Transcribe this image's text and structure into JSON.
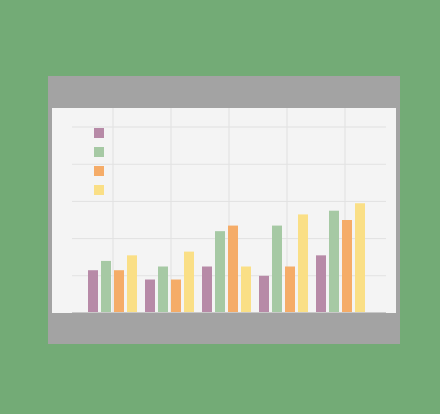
{
  "colors": {
    "background": "#73ab76",
    "frame": "#a3a3a3",
    "inner": "#f4f4f4",
    "gridline": "#e1e1e1",
    "axis": "#c9c9c9"
  },
  "chart_data": {
    "type": "bar",
    "categories": [
      "",
      "",
      "",
      "",
      ""
    ],
    "series": [
      {
        "color": "#b78aa7",
        "values": [
          23,
          18,
          25,
          20,
          31
        ]
      },
      {
        "color": "#a6c9a4",
        "values": [
          28,
          25,
          44,
          47,
          55
        ]
      },
      {
        "color": "#f5ac68",
        "values": [
          23,
          18,
          47,
          25,
          50
        ]
      },
      {
        "color": "#fadf86",
        "values": [
          31,
          33,
          25,
          53,
          59
        ]
      }
    ],
    "ylim": [
      0,
      100
    ],
    "grid": true,
    "legend": "top-left"
  }
}
